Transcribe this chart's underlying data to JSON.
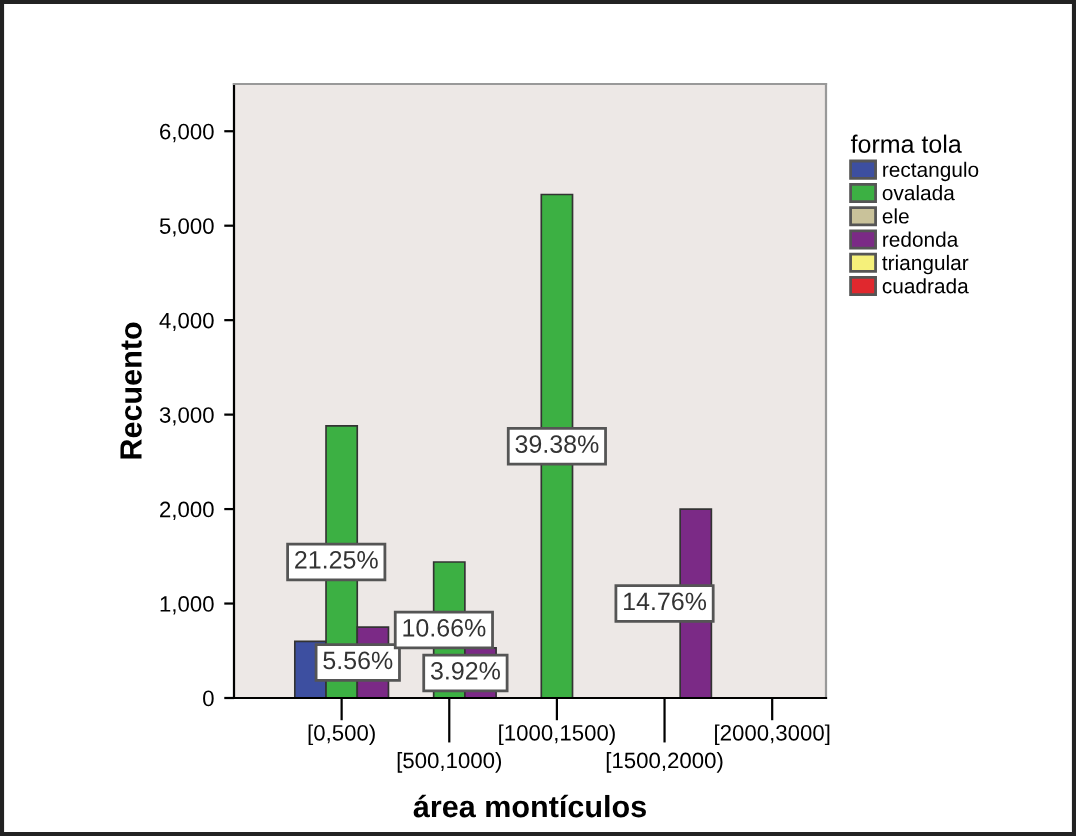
{
  "chart_data": {
    "type": "bar",
    "xlabel": "área montículos",
    "ylabel": "Recuento",
    "legend_title": "forma tola",
    "legend": "right",
    "grid": false,
    "categories": [
      "[0,500)",
      "[500,1000)",
      "[1000,1500)",
      "[1500,2000)",
      "[2000,3000]"
    ],
    "ylim": [
      0,
      6500
    ],
    "yticks": [
      0,
      {
        "value": 1000,
        "label": "1,000"
      },
      {
        "value": 2000,
        "label": "2,000"
      },
      {
        "value": 3000,
        "label": "3,000"
      },
      {
        "value": 4000,
        "label": "4,000"
      },
      {
        "value": 5000,
        "label": "5,000"
      },
      {
        "value": 6000,
        "label": "6,000"
      }
    ],
    "series": [
      {
        "name": "rectangulo",
        "color": "#3d4fa0",
        "values": [
          600,
          null,
          null,
          null,
          null
        ]
      },
      {
        "name": "ovalada",
        "color": "#3cb043",
        "values": [
          2880,
          1440,
          5330,
          null,
          null
        ]
      },
      {
        "name": "ele",
        "color": "#c9c29a",
        "values": [
          null,
          null,
          null,
          null,
          null
        ]
      },
      {
        "name": "redonda",
        "color": "#7b2a86",
        "values": [
          750,
          530,
          null,
          2000,
          null
        ]
      },
      {
        "name": "triangular",
        "color": "#f5f07a",
        "values": [
          null,
          null,
          null,
          null,
          null
        ]
      },
      {
        "name": "cuadrada",
        "color": "#e0282e",
        "values": [
          null,
          null,
          null,
          null,
          null
        ]
      }
    ],
    "annotations": [
      "21.25%",
      "5.56%",
      "10.66%",
      "3.92%",
      "39.38%",
      "14.76%"
    ]
  }
}
